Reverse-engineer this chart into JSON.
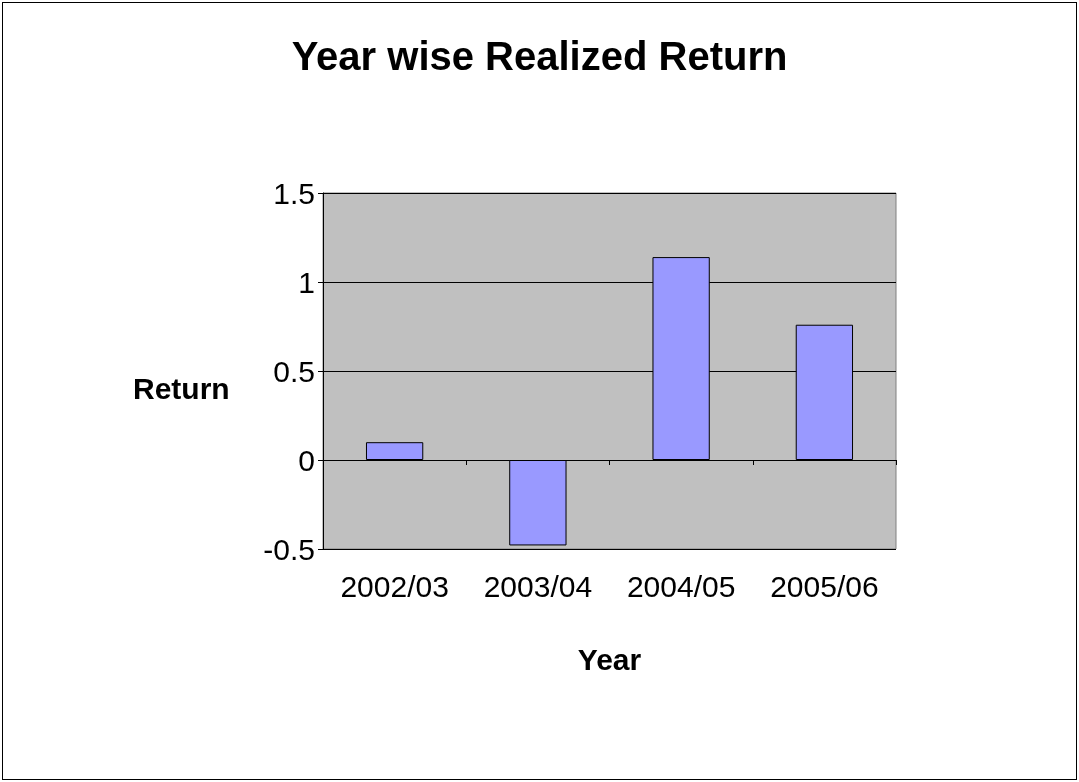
{
  "chart_data": {
    "type": "bar",
    "title": "Year wise Realized Return",
    "xlabel": "Year",
    "ylabel": "Return",
    "categories": [
      "2002/03",
      "2003/04",
      "2004/05",
      "2005/06"
    ],
    "values": [
      0.1,
      -0.48,
      1.14,
      0.76
    ],
    "color": "#9999ff",
    "ylim": [
      -0.5,
      1.5
    ],
    "yticks": [
      -0.5,
      0,
      0.5,
      1,
      1.5
    ],
    "grid": "y"
  }
}
